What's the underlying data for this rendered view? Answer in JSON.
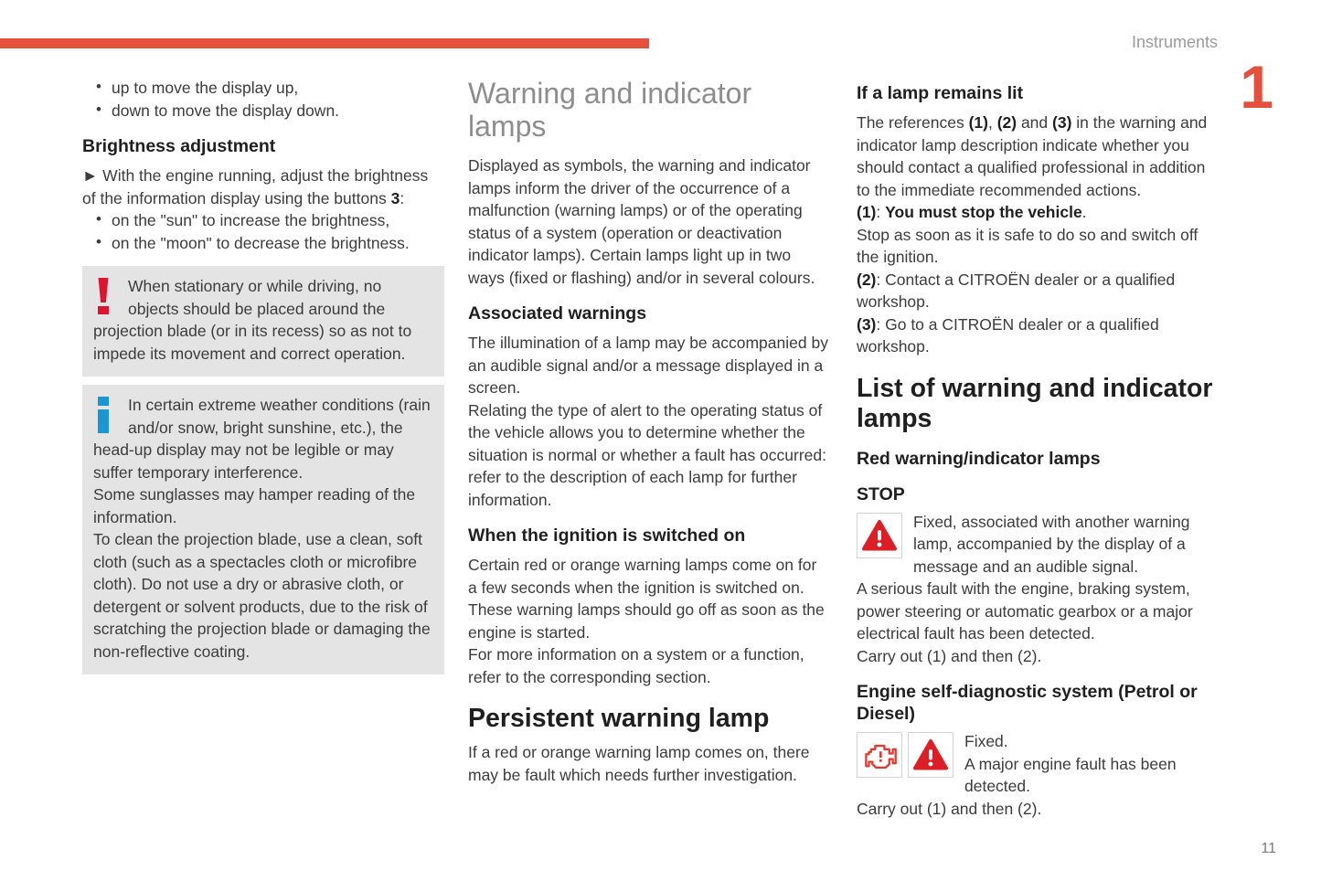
{
  "header": {
    "section_label": "Instruments",
    "chapter_number": "1"
  },
  "footer": {
    "page_number": "11"
  },
  "colors": {
    "accent_red": "#e74f3d",
    "warning_red": "#dc1f26",
    "exclamation_red": "#dc1430",
    "info_blue": "#1a96d4"
  },
  "left_column": {
    "top_bullets": [
      "up to move the display up,",
      "down to move the display down."
    ],
    "brightness_heading": "Brightness adjustment",
    "brightness_para": [
      {
        "t": "►  With the engine running, adjust the brightness of the information display using the buttons "
      },
      {
        "t": "3",
        "b": 1
      },
      {
        "t": ":"
      }
    ],
    "brightness_bullets": [
      "on the \"sun\" to increase the brightness,",
      "on the \"moon\" to decrease the brightness."
    ],
    "warning_box_text": "When stationary or while driving, no objects should be placed around the projection blade (or in its recess) so as not to impede its movement and correct operation.",
    "info_box_text": "In certain extreme weather conditions (rain and/or snow, bright sunshine, etc.), the head-up display may not be legible or may suffer temporary interference.\nSome sunglasses may hamper reading of the information.\nTo clean the projection blade, use a clean, soft cloth (such as a spectacles cloth or microfibre cloth). Do not use a dry or abrasive cloth, or detergent or solvent products, due to the risk of scratching the projection blade or damaging the non-reflective coating."
  },
  "middle_column": {
    "title": "Warning and indicator lamps",
    "intro_para": "Displayed as symbols, the warning and indicator lamps inform the driver of the occurrence of a malfunction (warning lamps) or of the operating status of a system (operation or deactivation indicator lamps). Certain lamps light up in two ways (fixed or flashing) and/or in several colours.",
    "associated_heading": "Associated warnings",
    "associated_para": "The illumination of a lamp may be accompanied by an audible signal and/or a message displayed in a screen.\nRelating the type of alert to the operating status of the vehicle allows you to determine whether the situation is normal or whether a fault has occurred: refer to the description of each lamp for further information.",
    "ignition_heading": "When the ignition is switched on",
    "ignition_para": "Certain red or orange warning lamps come on for a few seconds when the ignition is switched on. These warning lamps should go off as soon as the engine is started.\nFor more information on a system or a function, refer to the corresponding section.",
    "persistent_heading": "Persistent warning lamp",
    "persistent_para": "If a red or orange warning lamp comes on, there may be fault which needs further investigation."
  },
  "right_column": {
    "lamp_lit_heading": "If a lamp remains lit",
    "references_para": [
      {
        "t": "The references "
      },
      {
        "t": "(1)",
        "b": 1
      },
      {
        "t": ", "
      },
      {
        "t": "(2)",
        "b": 1
      },
      {
        "t": " and "
      },
      {
        "t": "(3)",
        "b": 1
      },
      {
        "t": " in the warning and indicator lamp description indicate whether you should contact a qualified professional in addition to the immediate recommended actions.\n"
      },
      {
        "t": "(1)",
        "b": 1
      },
      {
        "t": ": "
      },
      {
        "t": "You must stop the vehicle",
        "b": 1
      },
      {
        "t": ".\nStop as soon as it is safe to do so and switch off the ignition.\n"
      },
      {
        "t": "(2)",
        "b": 1
      },
      {
        "t": ": Contact a CITROËN dealer or a qualified workshop.\n"
      },
      {
        "t": "(3)",
        "b": 1
      },
      {
        "t": ": Go to a CITROËN dealer or a qualified workshop."
      }
    ],
    "list_heading": "List of warning and indicator lamps",
    "red_lamps_heading": "Red warning/indicator lamps",
    "stop_heading": "STOP",
    "stop_para": "Fixed, associated with another warning lamp, accompanied by the display of a message and an audible signal.\nA serious fault with the engine, braking system, power steering or automatic gearbox or a major electrical fault has been detected.\nCarry out (1) and then (2).",
    "engine_heading": "Engine self-diagnostic system (Petrol or Diesel)",
    "engine_para": "Fixed.\nA major engine fault has been detected.\nCarry out (1) and then (2)."
  }
}
